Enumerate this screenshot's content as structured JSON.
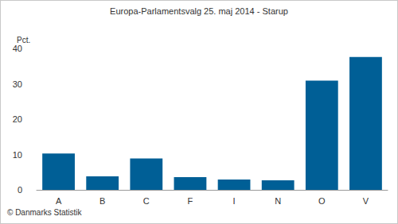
{
  "chart_data": {
    "type": "bar",
    "title": "Europa-Parlamentsvalg 25. maj 2014 - Starup",
    "ylabel": "Pct.",
    "note": "© Danmarks Statistik",
    "categories": [
      "A",
      "B",
      "C",
      "F",
      "I",
      "N",
      "O",
      "V"
    ],
    "values": [
      10.3,
      3.8,
      8.9,
      3.6,
      2.9,
      2.7,
      30.9,
      37.6
    ],
    "color": "#005f96",
    "ylim": [
      0,
      40
    ],
    "yticks": [
      0,
      10,
      20,
      30,
      40
    ],
    "grid": false
  }
}
